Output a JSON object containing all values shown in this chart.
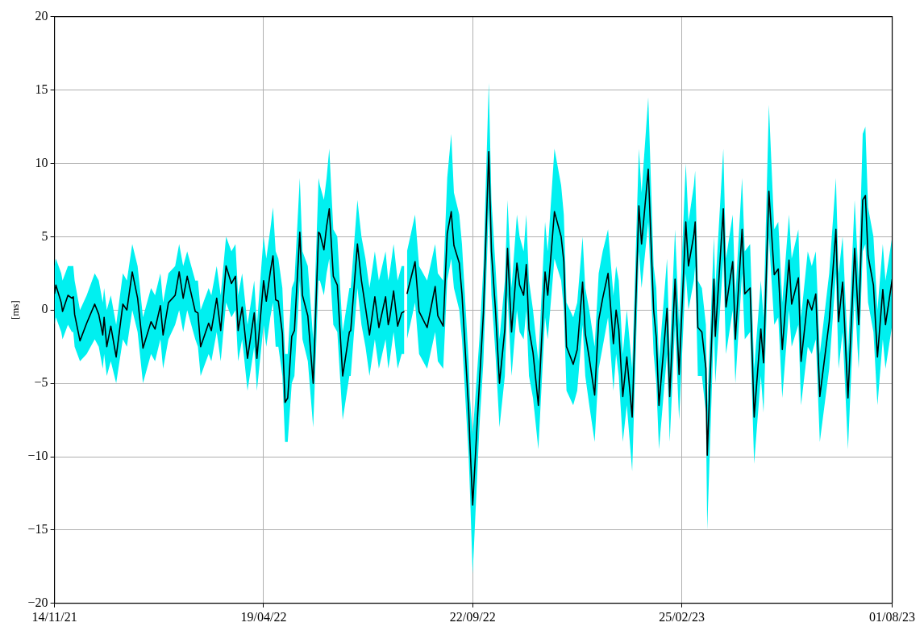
{
  "chart_data": {
    "type": "line",
    "ylabel": "[ms]",
    "xlim": [
      "2021-11-14",
      "2023-08-01"
    ],
    "xticks": [
      {
        "value": "2021-11-14",
        "label": "14/11/21"
      },
      {
        "value": "2022-04-19",
        "label": "19/04/22"
      },
      {
        "value": "2022-09-22",
        "label": "22/09/22"
      },
      {
        "value": "2023-02-25",
        "label": "25/02/23"
      },
      {
        "value": "2023-08-01",
        "label": "01/08/23"
      }
    ],
    "ylim": [
      -20,
      20
    ],
    "yticks": [
      {
        "value": -20,
        "label": "−20"
      },
      {
        "value": -15,
        "label": "−15"
      },
      {
        "value": -10,
        "label": "−10"
      },
      {
        "value": -5,
        "label": "−5"
      },
      0,
      5,
      10,
      15,
      20
    ],
    "grid": true,
    "legend": false,
    "marker": "none",
    "line_style": "solid",
    "series": [
      {
        "color": "#000000",
        "x": [
          "2021-11-14",
          "2021-11-15",
          "2021-11-19",
          "2021-11-20",
          "2021-11-24",
          "2021-11-27",
          "2021-11-28",
          "2021-11-29",
          "2021-12-03",
          "2021-12-08",
          "2021-12-14",
          "2021-12-17",
          "2021-12-20",
          "2021-12-21",
          "2021-12-23",
          "2021-12-26",
          "2021-12-30",
          "2022-01-04",
          "2022-01-07",
          "2022-01-11",
          "2022-01-15",
          "2022-01-19",
          "2022-01-25",
          "2022-01-28",
          "2022-02-01",
          "2022-02-03",
          "2022-02-07",
          "2022-02-12",
          "2022-02-15",
          "2022-02-18",
          "2022-02-21",
          "2022-02-27",
          "2022-03-01",
          "2022-03-03",
          "2022-03-09",
          "2022-03-11",
          "2022-03-15",
          "2022-03-18",
          "2022-03-22",
          "2022-03-26",
          "2022-03-29",
          "2022-03-31",
          "2022-04-03",
          "2022-04-07",
          "2022-04-12",
          "2022-04-14",
          "2022-04-19",
          "2022-04-21",
          "2022-04-24",
          "2022-04-26",
          "2022-04-28",
          "2022-04-30",
          "2022-05-03",
          "2022-05-05",
          "2022-05-07",
          "2022-05-10",
          "2022-05-12",
          "2022-05-16",
          "2022-05-18",
          "2022-05-22",
          "2022-05-26",
          "2022-05-30",
          "2022-05-31",
          "2022-06-03",
          "2022-06-05",
          "2022-06-07",
          "2022-06-10",
          "2022-06-13",
          "2022-06-17",
          "2022-06-22",
          "2022-06-23",
          "2022-06-28",
          "2022-07-01",
          "2022-07-04",
          "2022-07-07",
          "2022-07-11",
          "2022-07-14",
          "2022-07-19",
          "2022-07-21",
          "2022-07-22",
          "2022-07-25",
          "2022-07-28",
          "2022-07-31",
          "2022-08-02",
          "2022-08-03",
          "2022-08-04",
          "2022-08-10",
          "2022-08-13",
          "2022-08-19",
          "2022-08-25",
          "2022-08-27",
          "2022-08-31",
          "2022-09-03",
          "2022-09-06",
          "2022-09-08",
          "2022-09-12",
          "2022-09-14",
          "2022-09-19",
          "2022-09-20",
          "2022-09-22",
          "2022-09-27",
          "2022-09-30",
          "2022-10-04",
          "2022-10-06",
          "2022-10-09",
          "2022-10-12",
          "2022-10-16",
          "2022-10-18",
          "2022-10-21",
          "2022-10-25",
          "2022-10-27",
          "2022-10-30",
          "2022-11-01",
          "2022-11-03",
          "2022-11-06",
          "2022-11-10",
          "2022-11-15",
          "2022-11-17",
          "2022-11-22",
          "2022-11-27",
          "2022-11-29",
          "2022-12-01",
          "2022-12-06",
          "2022-12-09",
          "2022-12-13",
          "2022-12-15",
          "2022-12-18",
          "2022-12-22",
          "2022-12-25",
          "2022-12-28",
          "2023-01-01",
          "2023-01-05",
          "2023-01-07",
          "2023-01-09",
          "2023-01-12",
          "2023-01-15",
          "2023-01-19",
          "2023-01-24",
          "2023-01-26",
          "2023-01-31",
          "2023-02-04",
          "2023-02-06",
          "2023-02-08",
          "2023-02-14",
          "2023-02-16",
          "2023-02-20",
          "2023-02-23",
          "2023-02-28",
          "2023-03-02",
          "2023-03-06",
          "2023-03-07",
          "2023-03-09",
          "2023-03-12",
          "2023-03-15",
          "2023-03-16",
          "2023-03-21",
          "2023-03-22",
          "2023-03-28",
          "2023-03-30",
          "2023-04-04",
          "2023-04-06",
          "2023-04-11",
          "2023-04-13",
          "2023-04-17",
          "2023-04-20",
          "2023-04-25",
          "2023-04-27",
          "2023-05-01",
          "2023-05-05",
          "2023-05-08",
          "2023-05-11",
          "2023-05-16",
          "2023-05-18",
          "2023-05-23",
          "2023-05-25",
          "2023-05-30",
          "2023-06-02",
          "2023-06-05",
          "2023-06-08",
          "2023-06-15",
          "2023-06-20",
          "2023-06-22",
          "2023-06-25",
          "2023-06-29",
          "2023-07-04",
          "2023-07-07",
          "2023-07-10",
          "2023-07-12",
          "2023-07-14",
          "2023-07-18",
          "2023-07-21",
          "2023-07-25",
          "2023-07-27",
          "2023-08-01"
        ],
        "values": [
          1.1,
          1.7,
          0.5,
          -0.1,
          1.0,
          0.8,
          0.9,
          -0.3,
          -2.1,
          -0.9,
          0.4,
          -0.3,
          -1.7,
          -0.5,
          -2.5,
          -1.1,
          -3.2,
          0.4,
          0.0,
          2.6,
          0.8,
          -2.6,
          -0.8,
          -1.3,
          0.3,
          -1.7,
          0.5,
          1.0,
          2.6,
          0.8,
          2.3,
          -0.1,
          -0.2,
          -2.5,
          -0.9,
          -1.4,
          0.8,
          -1.4,
          3.0,
          1.8,
          2.3,
          -1.4,
          0.2,
          -3.3,
          -0.2,
          -3.3,
          2.0,
          0.6,
          2.6,
          3.7,
          0.7,
          0.6,
          -1.6,
          -6.3,
          -6.0,
          -1.8,
          -1.4,
          5.3,
          1.0,
          -0.4,
          -5.0,
          5.3,
          5.2,
          4.1,
          5.7,
          6.9,
          2.3,
          1.7,
          -4.5,
          -1.5,
          -1.4,
          4.5,
          2.0,
          0.2,
          -1.7,
          0.9,
          -1.2,
          0.9,
          -1.0,
          -0.6,
          1.3,
          -1.1,
          -0.2,
          -0.1,
          null,
          1.1,
          3.3,
          -0.1,
          -1.2,
          1.6,
          -0.4,
          -1.1,
          5.2,
          6.7,
          4.4,
          3.2,
          1.1,
          -6.8,
          -9.2,
          -13.3,
          -5.0,
          -0.2,
          10.8,
          4.0,
          0.0,
          -5.0,
          -1.3,
          4.2,
          -1.5,
          3.2,
          1.7,
          1.0,
          3.1,
          -1.3,
          -2.9,
          -6.5,
          2.6,
          1.0,
          6.7,
          5.0,
          3.3,
          -2.5,
          -3.7,
          -2.7,
          1.9,
          -1.6,
          -3.3,
          -5.8,
          -0.7,
          0.8,
          2.5,
          -2.3,
          0.0,
          -1.3,
          -5.9,
          -3.2,
          -7.3,
          7.1,
          4.5,
          9.6,
          0.0,
          -1.9,
          -6.5,
          0.1,
          -5.9,
          2.1,
          -4.4,
          6.0,
          3.0,
          5.1,
          6.0,
          -1.2,
          -1.5,
          -4.0,
          -9.9,
          2.1,
          -1.8,
          6.9,
          0.2,
          3.3,
          -2.0,
          5.5,
          1.1,
          1.5,
          -7.3,
          -1.3,
          -3.6,
          8.1,
          2.4,
          2.8,
          -2.7,
          3.4,
          0.4,
          2.2,
          -3.5,
          0.7,
          0.0,
          1.1,
          -5.9,
          -0.8,
          5.5,
          -0.8,
          1.9,
          -6.0,
          4.2,
          -1.0,
          7.5,
          7.8,
          3.7,
          1.7,
          -3.2,
          1.4,
          -1.0,
          2.1
        ],
        "lower": [
          -1,
          -0.5,
          -1.5,
          -2,
          -1,
          -1.5,
          -1.5,
          -2.5,
          -3.5,
          -3,
          -2,
          -2.5,
          -4,
          -3,
          -4.5,
          -3.5,
          -5,
          -2,
          -2.5,
          0,
          -1.5,
          -5,
          -3,
          -3.5,
          -2,
          -4,
          -2,
          -1,
          0,
          -1.5,
          0,
          -2,
          -2.5,
          -4.5,
          -3,
          -3.5,
          -1.5,
          -3.5,
          0.5,
          -0.5,
          0,
          -3.5,
          -2,
          -5.5,
          -2.5,
          -5.5,
          -1,
          -2.5,
          -0.5,
          0.5,
          -2.5,
          -2.5,
          -4.5,
          -9,
          -9,
          -5,
          -4.5,
          2,
          -2,
          -3.5,
          -8,
          2,
          2,
          1,
          2.5,
          3.5,
          -1,
          -1.5,
          -7.5,
          -4.5,
          -4.5,
          1.5,
          -1,
          -2.5,
          -4.5,
          -2,
          -4,
          -2,
          -4,
          -3.5,
          -1.5,
          -4,
          -3,
          -3,
          null,
          -2,
          0.5,
          -3,
          -4,
          -1.5,
          -3.5,
          -4,
          2,
          3.5,
          1.5,
          0,
          -2,
          -10,
          -12.5,
          -18,
          -8,
          -3.5,
          7,
          1,
          -3,
          -8,
          -4.5,
          1,
          -4.5,
          0,
          -1.5,
          -2,
          0,
          -4.5,
          -6,
          -9.5,
          -0.5,
          -2,
          3.5,
          2,
          0,
          -5.5,
          -6.5,
          -5.5,
          -1,
          -4.5,
          -6.5,
          -9,
          -4,
          -2.5,
          -0.5,
          -5.5,
          -3,
          -4.5,
          -9,
          -6.5,
          -11,
          4,
          1.5,
          6,
          -3,
          -5,
          -9.5,
          -3,
          -9,
          -1,
          -7.5,
          2.5,
          0,
          2,
          3,
          -4.5,
          -4.5,
          -7,
          -15,
          -1,
          -5,
          3.5,
          -3,
          0,
          -5,
          2.5,
          -2,
          -1.5,
          -10.5,
          -4.5,
          -7,
          5,
          -1,
          -0.5,
          -6,
          0,
          -2.5,
          -1,
          -6.5,
          -2.5,
          -3,
          -2,
          -9,
          -4,
          2.5,
          -4,
          -1.5,
          -9.5,
          1,
          -4,
          4,
          4.5,
          0.5,
          -1.5,
          -6.5,
          -2,
          -4,
          -1
        ],
        "upper": [
          3,
          3.5,
          2.5,
          2,
          3,
          3,
          3,
          2,
          0,
          1,
          2.5,
          2,
          0.5,
          1.5,
          0,
          1,
          -1,
          2.5,
          2,
          4.5,
          3,
          -0.5,
          1.5,
          1,
          2.5,
          0.5,
          2.5,
          3,
          4.5,
          3,
          4,
          2,
          2,
          0,
          1.5,
          1,
          3,
          1,
          5,
          4,
          4.5,
          1,
          2.5,
          -1,
          2,
          -1,
          5,
          3.5,
          5.5,
          7,
          4,
          3.5,
          1.5,
          -3,
          -3,
          1.5,
          2,
          9,
          4,
          3,
          -2,
          9,
          8.5,
          7.5,
          9,
          11,
          5.5,
          5,
          -1.5,
          1.5,
          1.5,
          7.5,
          5,
          3.5,
          1.5,
          4,
          2,
          4,
          2,
          2.5,
          4.5,
          2,
          3,
          3,
          null,
          4,
          6.5,
          3,
          2,
          4.5,
          2.5,
          2,
          9,
          12,
          8,
          6.5,
          4.5,
          -3.5,
          -6,
          -8.5,
          -2,
          3,
          15.5,
          7.5,
          3,
          -2,
          2,
          7.5,
          1.5,
          6.5,
          5,
          4,
          6.5,
          2,
          0,
          -3.5,
          6,
          4,
          11,
          8.5,
          6.5,
          0.5,
          -0.5,
          0.5,
          5,
          1.5,
          0,
          -2.5,
          2.5,
          4,
          5.5,
          1,
          3,
          2,
          -3,
          0,
          -4,
          11,
          8,
          14.5,
          3,
          1.5,
          -3.5,
          3.5,
          -3,
          5.5,
          -1,
          10,
          6,
          8.5,
          9.5,
          2,
          1.5,
          -1,
          -6.5,
          5,
          1.5,
          11,
          3.5,
          6.5,
          1,
          9,
          4,
          4.5,
          -4,
          2,
          -0.5,
          14,
          5.5,
          6,
          0.5,
          6.5,
          3.5,
          5.5,
          -0.5,
          4,
          3,
          4,
          -3,
          2.5,
          9,
          2.5,
          5,
          -3,
          7.5,
          2,
          12,
          12.5,
          7,
          5,
          0,
          4.5,
          2,
          5
        ]
      }
    ]
  }
}
